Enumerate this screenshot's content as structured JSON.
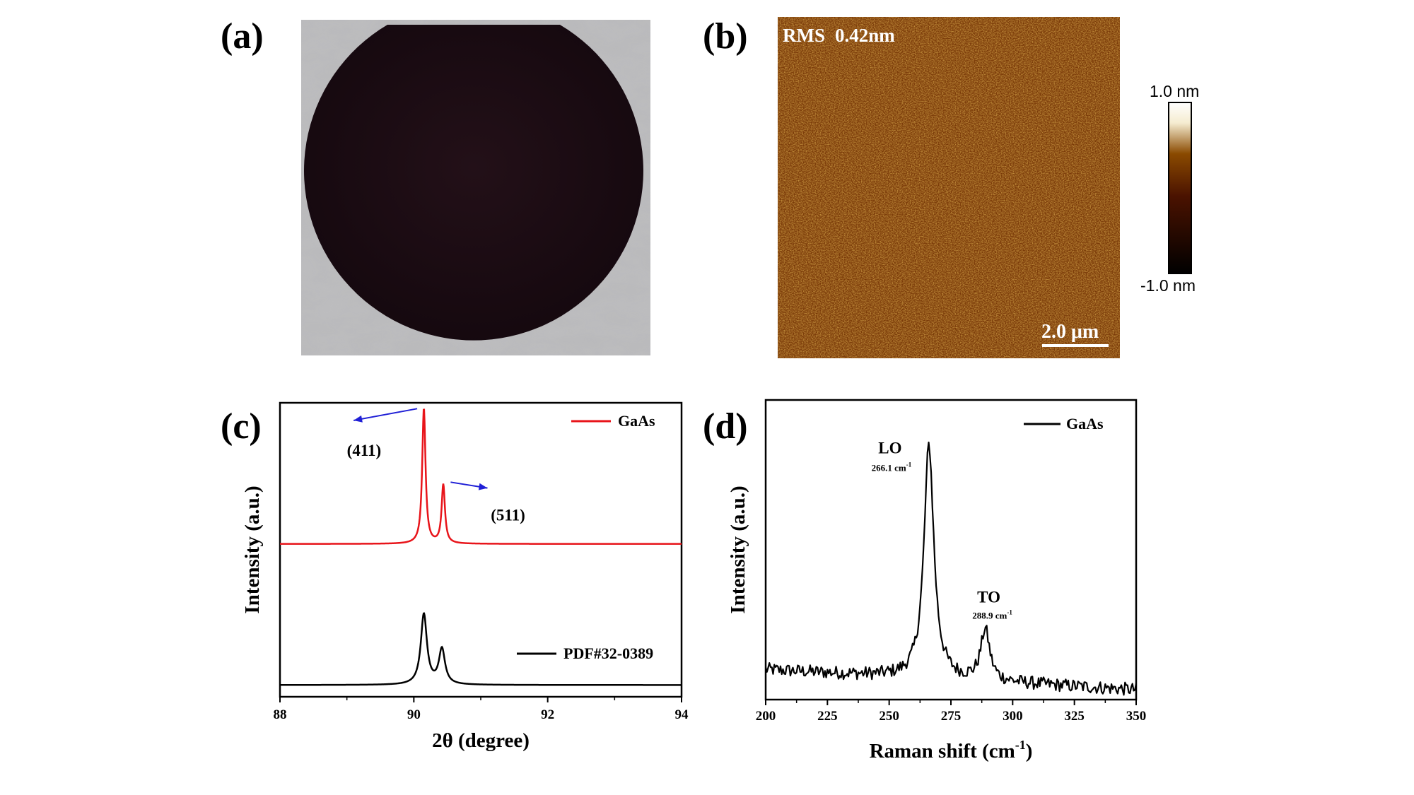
{
  "panels": {
    "a": {
      "label": "(a)"
    },
    "b": {
      "label": "(b)",
      "rms_label": "RMS",
      "rms_value": "0.42nm",
      "scale_bar": "2.0 μm",
      "colorbar_max": "1.0 nm",
      "colorbar_min": "-1.0 nm",
      "colors": {
        "dark": "#000000",
        "mid": "#8a4a00",
        "light": "#f5ecd0",
        "top": "#ffffff"
      }
    },
    "c": {
      "label": "(c)"
    },
    "d": {
      "label": "(d)"
    }
  },
  "chart_data": [
    {
      "id": "c",
      "type": "line",
      "xlabel": "2θ (degree)",
      "ylabel": "Intensity (a.u.)",
      "xlim": [
        88,
        94
      ],
      "xticks": [
        88,
        90,
        92,
        94
      ],
      "yticks_shown": false,
      "series": [
        {
          "name": "GaAs",
          "color": "#e8141a",
          "baseline": 0.52,
          "peaks": [
            {
              "x": 90.15,
              "h": 0.46,
              "w": 0.03
            },
            {
              "x": 90.44,
              "h": 0.2,
              "w": 0.03
            }
          ]
        },
        {
          "name": "PDF#32-0389",
          "color": "#000000",
          "baseline": 0.04,
          "peaks": [
            {
              "x": 90.15,
              "h": 0.24,
              "w": 0.055
            },
            {
              "x": 90.42,
              "h": 0.12,
              "w": 0.055
            }
          ]
        }
      ],
      "annotations": [
        {
          "text": "(411)",
          "x": 89.0,
          "y": 0.82
        },
        {
          "text": "(511)",
          "x": 91.15,
          "y": 0.6
        }
      ],
      "arrows": [
        {
          "from": [
            90.05,
            0.98
          ],
          "to": [
            89.1,
            0.94
          ],
          "color": "#1f1fd6"
        },
        {
          "from": [
            90.55,
            0.73
          ],
          "to": [
            91.1,
            0.71
          ],
          "color": "#1f1fd6"
        }
      ]
    },
    {
      "id": "d",
      "type": "line",
      "xlabel": "Raman shift (cm",
      "xlabel_sup": "-1",
      "xlabel_end": ")",
      "ylabel": "Intensity (a.u.)",
      "xlim": [
        200,
        350
      ],
      "xticks": [
        200,
        225,
        250,
        275,
        300,
        325,
        350
      ],
      "yticks_shown": false,
      "series": [
        {
          "name": "GaAs",
          "color": "#000000",
          "baseline": 0.1,
          "noise": 0.022,
          "slope": -0.00045,
          "peaks": [
            {
              "x": 266.1,
              "h": 0.78,
              "w": 2.4
            },
            {
              "x": 288.9,
              "h": 0.17,
              "w": 2.2
            }
          ]
        }
      ],
      "annotations": [
        {
          "id": "lo",
          "text": "LO",
          "sub": "266.1 cm",
          "sup": "-1",
          "x": 266.1
        },
        {
          "id": "to",
          "text": "TO",
          "sub": "288.9 cm",
          "sup": "-1",
          "x": 288.9
        }
      ]
    }
  ]
}
